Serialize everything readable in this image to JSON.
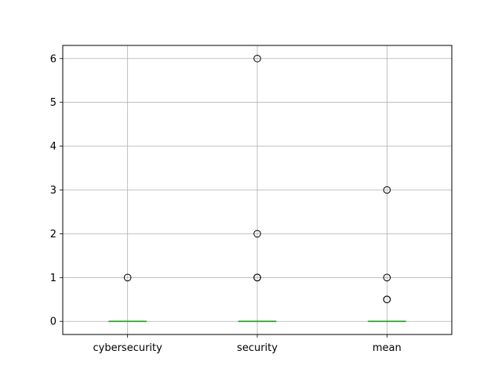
{
  "chart_data": {
    "type": "boxplot",
    "categories": [
      "cybersecurity",
      "security",
      "mean"
    ],
    "y_ticks": [
      "0",
      "1",
      "2",
      "3",
      "4",
      "5",
      "6"
    ],
    "ylim": [
      -0.3,
      6.3
    ],
    "grid": true,
    "series": [
      {
        "category": "cybersecurity",
        "q1": 0,
        "median": 0,
        "q3": 0,
        "whisker_low": 0,
        "whisker_high": 0,
        "outliers": [
          1
        ]
      },
      {
        "category": "security",
        "q1": 0,
        "median": 0,
        "q3": 0,
        "whisker_low": 0,
        "whisker_high": 0,
        "outliers": [
          1,
          1,
          2,
          6
        ]
      },
      {
        "category": "mean",
        "q1": 0,
        "median": 0,
        "q3": 0,
        "whisker_low": 0,
        "whisker_high": 0,
        "outliers": [
          0.5,
          0.5,
          1,
          3
        ]
      }
    ],
    "colors": {
      "median": "#2ca02c",
      "box": "#1f77b4",
      "grid": "#b0b0b0",
      "outlier_edge": "#000000"
    }
  }
}
